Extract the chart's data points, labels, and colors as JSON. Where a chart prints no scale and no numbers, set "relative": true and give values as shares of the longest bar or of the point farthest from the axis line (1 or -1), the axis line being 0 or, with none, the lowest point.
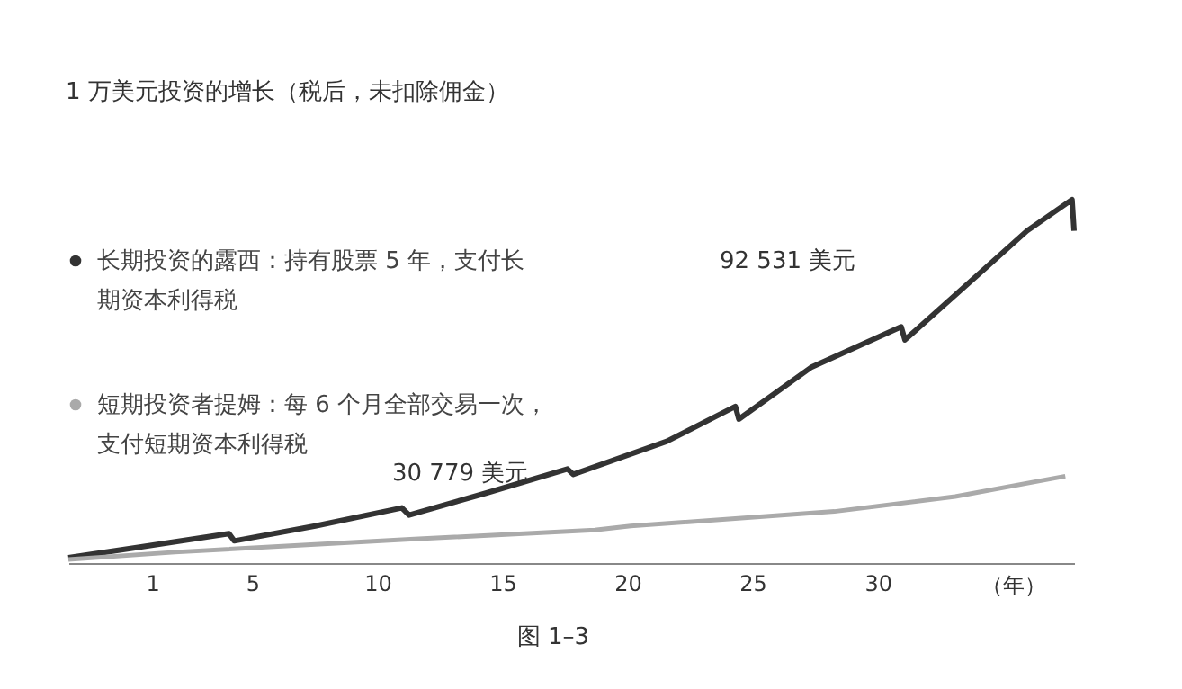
{
  "chart_data": {
    "type": "line",
    "title": "1 万美元投资的增长（税后，未扣除佣金）",
    "xlabel": "（年）",
    "relative": true,
    "xlim": [
      -2.35,
      37.85
    ],
    "xticks": [
      1,
      5,
      10,
      15,
      20,
      25,
      30
    ],
    "legend": "left",
    "marker": "none",
    "line_style": "solid",
    "series": [
      {
        "name": "长期投资的露西：持有股票 5 年，支付长期资本利得税",
        "color": "#333333",
        "x": [
          -2.35,
          0.68,
          4.07,
          4.28,
          7.52,
          10.98,
          11.27,
          14.37,
          17.6,
          17.83,
          21.57,
          24.31,
          24.45,
          27.33,
          30.94,
          31.09,
          34.32,
          35.97,
          37.77,
          37.85
        ],
        "values": [
          0.015,
          0.046,
          0.081,
          0.061,
          0.102,
          0.152,
          0.132,
          0.193,
          0.259,
          0.244,
          0.335,
          0.431,
          0.396,
          0.538,
          0.65,
          0.614,
          0.812,
          0.914,
          1.0,
          0.914
        ]
      },
      {
        "name": "短期投资者提姆：每 6 个月全部交易一次，支付短期资本利得税",
        "color": "#aaaaaa",
        "x": [
          -2.35,
          1.9,
          11.48,
          18.69,
          20.13,
          28.27,
          33.1,
          37.5
        ],
        "values": [
          0.01,
          0.03,
          0.066,
          0.091,
          0.102,
          0.142,
          0.183,
          0.239
        ]
      }
    ],
    "annotations": [
      "92 531 美元",
      "30 779 美元",
      "图 1–3"
    ]
  }
}
